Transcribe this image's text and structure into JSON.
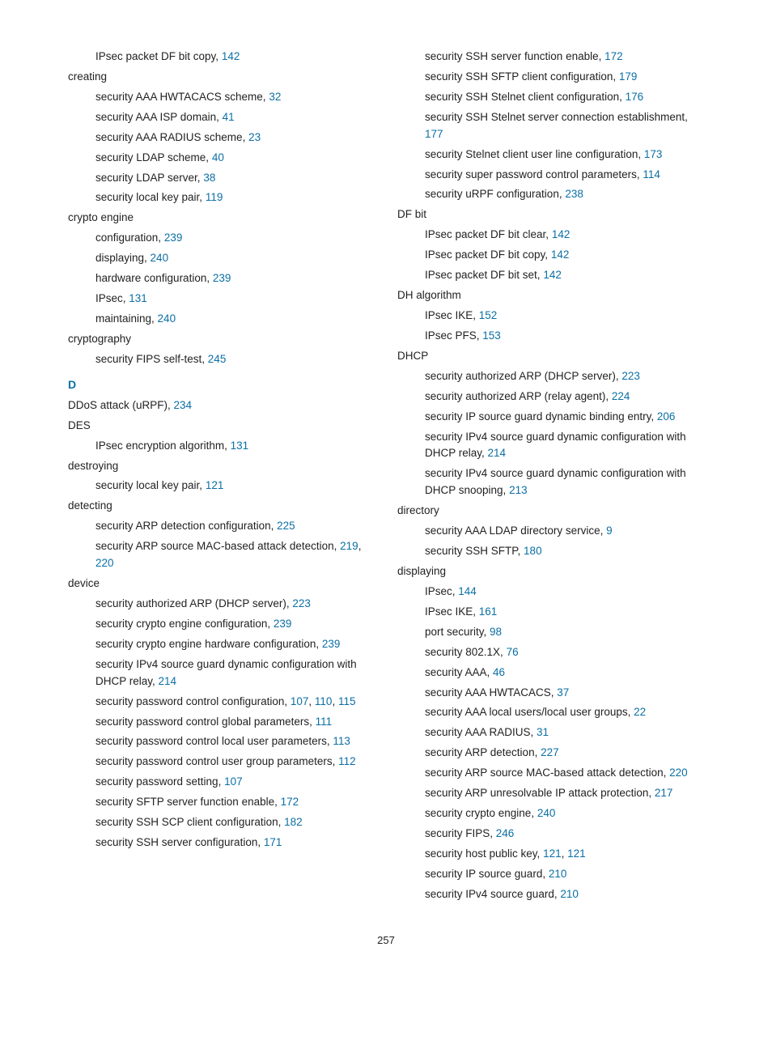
{
  "link_color": "#0b6fa4",
  "page_number": "257",
  "left": [
    {
      "indent": 1,
      "text": "IPsec packet DF bit copy, ",
      "pages": [
        "142"
      ]
    },
    {
      "indent": 0,
      "text": "creating"
    },
    {
      "indent": 1,
      "text": "security AAA HWTACACS scheme, ",
      "pages": [
        "32"
      ]
    },
    {
      "indent": 1,
      "text": "security AAA ISP domain, ",
      "pages": [
        "41"
      ]
    },
    {
      "indent": 1,
      "text": "security AAA RADIUS scheme, ",
      "pages": [
        "23"
      ]
    },
    {
      "indent": 1,
      "text": "security LDAP scheme, ",
      "pages": [
        "40"
      ]
    },
    {
      "indent": 1,
      "text": "security LDAP server, ",
      "pages": [
        "38"
      ]
    },
    {
      "indent": 1,
      "text": "security local key pair, ",
      "pages": [
        "119"
      ]
    },
    {
      "indent": 0,
      "text": "crypto engine"
    },
    {
      "indent": 1,
      "text": "configuration, ",
      "pages": [
        "239"
      ]
    },
    {
      "indent": 1,
      "text": "displaying, ",
      "pages": [
        "240"
      ]
    },
    {
      "indent": 1,
      "text": "hardware configuration, ",
      "pages": [
        "239"
      ]
    },
    {
      "indent": 1,
      "text": "IPsec, ",
      "pages": [
        "131"
      ]
    },
    {
      "indent": 1,
      "text": "maintaining, ",
      "pages": [
        "240"
      ]
    },
    {
      "indent": 0,
      "text": "cryptography"
    },
    {
      "indent": 1,
      "text": "security FIPS self-test, ",
      "pages": [
        "245"
      ]
    },
    {
      "letter": "D"
    },
    {
      "indent": 0,
      "text": "DDoS attack (uRPF), ",
      "pages": [
        "234"
      ]
    },
    {
      "indent": 0,
      "text": "DES"
    },
    {
      "indent": 1,
      "text": "IPsec encryption algorithm, ",
      "pages": [
        "131"
      ]
    },
    {
      "indent": 0,
      "text": "destroying"
    },
    {
      "indent": 1,
      "text": "security local key pair, ",
      "pages": [
        "121"
      ]
    },
    {
      "indent": 0,
      "text": "detecting"
    },
    {
      "indent": 1,
      "text": "security ARP detection configuration, ",
      "pages": [
        "225"
      ]
    },
    {
      "indent": 1,
      "text": "security ARP source MAC-based attack detection, ",
      "pages": [
        "219",
        "220"
      ]
    },
    {
      "indent": 0,
      "text": "device"
    },
    {
      "indent": 1,
      "text": "security authorized ARP (DHCP server), ",
      "pages": [
        "223"
      ]
    },
    {
      "indent": 1,
      "text": "security crypto engine configuration, ",
      "pages": [
        "239"
      ]
    },
    {
      "indent": 1,
      "text": "security crypto engine hardware configuration, ",
      "pages": [
        "239"
      ]
    },
    {
      "indent": 1,
      "text": "security IPv4 source guard dynamic configuration with DHCP relay, ",
      "pages": [
        "214"
      ]
    },
    {
      "indent": 1,
      "text": "security password control configuration, ",
      "pages": [
        "107",
        "110",
        "115"
      ]
    },
    {
      "indent": 1,
      "text": "security password control global parameters, ",
      "pages": [
        "111"
      ]
    },
    {
      "indent": 1,
      "text": "security password control local user parameters, ",
      "pages": [
        "113"
      ]
    },
    {
      "indent": 1,
      "text": "security password control user group parameters, ",
      "pages": [
        "112"
      ]
    },
    {
      "indent": 1,
      "text": "security password setting, ",
      "pages": [
        "107"
      ]
    },
    {
      "indent": 1,
      "text": "security SFTP server function enable, ",
      "pages": [
        "172"
      ]
    },
    {
      "indent": 1,
      "text": "security SSH SCP client configuration, ",
      "pages": [
        "182"
      ]
    },
    {
      "indent": 1,
      "text": "security SSH server configuration, ",
      "pages": [
        "171"
      ]
    }
  ],
  "right": [
    {
      "indent": 1,
      "text": "security SSH server function enable, ",
      "pages": [
        "172"
      ]
    },
    {
      "indent": 1,
      "text": "security SSH SFTP client configuration, ",
      "pages": [
        "179"
      ]
    },
    {
      "indent": 1,
      "text": "security SSH Stelnet client configuration, ",
      "pages": [
        "176"
      ]
    },
    {
      "indent": 1,
      "text": "security SSH Stelnet server connection establishment, ",
      "pages": [
        "177"
      ]
    },
    {
      "indent": 1,
      "text": "security Stelnet client user line configuration, ",
      "pages": [
        "173"
      ]
    },
    {
      "indent": 1,
      "text": "security super password control parameters, ",
      "pages": [
        "114"
      ]
    },
    {
      "indent": 1,
      "text": "security uRPF configuration, ",
      "pages": [
        "238"
      ]
    },
    {
      "indent": 0,
      "text": "DF bit"
    },
    {
      "indent": 1,
      "text": "IPsec packet DF bit clear, ",
      "pages": [
        "142"
      ]
    },
    {
      "indent": 1,
      "text": "IPsec packet DF bit copy, ",
      "pages": [
        "142"
      ]
    },
    {
      "indent": 1,
      "text": "IPsec packet DF bit set, ",
      "pages": [
        "142"
      ]
    },
    {
      "indent": 0,
      "text": "DH algorithm"
    },
    {
      "indent": 1,
      "text": "IPsec IKE, ",
      "pages": [
        "152"
      ]
    },
    {
      "indent": 1,
      "text": "IPsec PFS, ",
      "pages": [
        "153"
      ]
    },
    {
      "indent": 0,
      "text": "DHCP"
    },
    {
      "indent": 1,
      "text": "security authorized ARP (DHCP server), ",
      "pages": [
        "223"
      ]
    },
    {
      "indent": 1,
      "text": "security authorized ARP (relay agent), ",
      "pages": [
        "224"
      ]
    },
    {
      "indent": 1,
      "text": "security IP source guard dynamic binding entry, ",
      "pages": [
        "206"
      ]
    },
    {
      "indent": 1,
      "text": "security IPv4 source guard dynamic configuration with DHCP relay, ",
      "pages": [
        "214"
      ]
    },
    {
      "indent": 1,
      "text": "security IPv4 source guard dynamic configuration with DHCP snooping, ",
      "pages": [
        "213"
      ]
    },
    {
      "indent": 0,
      "text": "directory"
    },
    {
      "indent": 1,
      "text": "security AAA LDAP directory service, ",
      "pages": [
        "9"
      ]
    },
    {
      "indent": 1,
      "text": "security SSH SFTP, ",
      "pages": [
        "180"
      ]
    },
    {
      "indent": 0,
      "text": "displaying"
    },
    {
      "indent": 1,
      "text": "IPsec, ",
      "pages": [
        "144"
      ]
    },
    {
      "indent": 1,
      "text": "IPsec IKE, ",
      "pages": [
        "161"
      ]
    },
    {
      "indent": 1,
      "text": "port security, ",
      "pages": [
        "98"
      ]
    },
    {
      "indent": 1,
      "text": "security 802.1X, ",
      "pages": [
        "76"
      ]
    },
    {
      "indent": 1,
      "text": "security AAA, ",
      "pages": [
        "46"
      ]
    },
    {
      "indent": 1,
      "text": "security AAA HWTACACS, ",
      "pages": [
        "37"
      ]
    },
    {
      "indent": 1,
      "text": "security AAA local users/local user groups, ",
      "pages": [
        "22"
      ]
    },
    {
      "indent": 1,
      "text": "security AAA RADIUS, ",
      "pages": [
        "31"
      ]
    },
    {
      "indent": 1,
      "text": "security ARP detection, ",
      "pages": [
        "227"
      ]
    },
    {
      "indent": 1,
      "text": "security ARP source MAC-based attack detection, ",
      "pages": [
        "220"
      ]
    },
    {
      "indent": 1,
      "text": "security ARP unresolvable IP attack protection, ",
      "pages": [
        "217"
      ]
    },
    {
      "indent": 1,
      "text": "security crypto engine, ",
      "pages": [
        "240"
      ]
    },
    {
      "indent": 1,
      "text": "security FIPS, ",
      "pages": [
        "246"
      ]
    },
    {
      "indent": 1,
      "text": "security host public key, ",
      "pages": [
        "121",
        "121"
      ]
    },
    {
      "indent": 1,
      "text": "security IP source guard, ",
      "pages": [
        "210"
      ]
    },
    {
      "indent": 1,
      "text": "security IPv4 source guard, ",
      "pages": [
        "210"
      ]
    }
  ]
}
